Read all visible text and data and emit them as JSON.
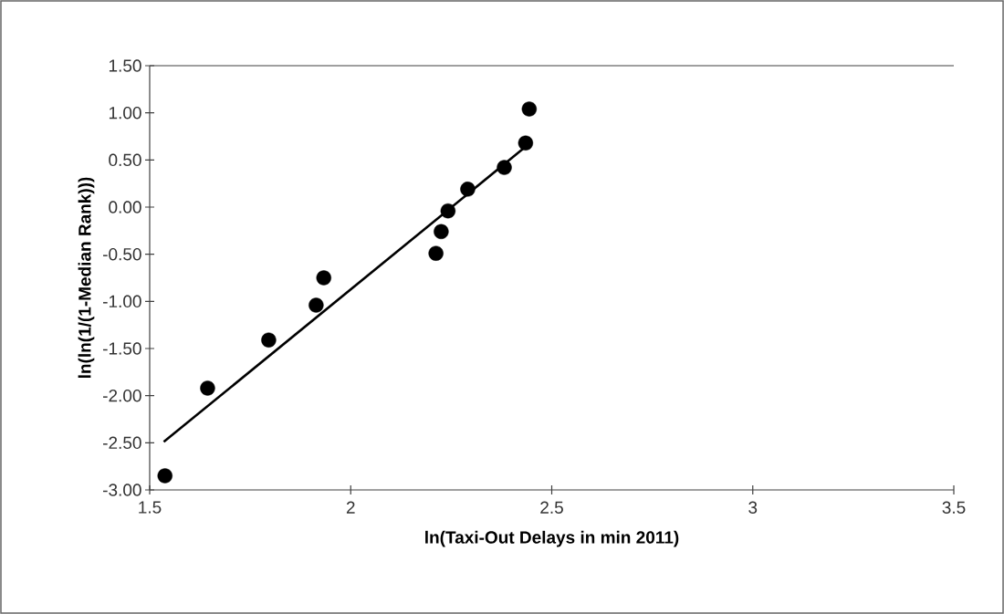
{
  "chart_data": {
    "type": "scatter",
    "xlabel": "ln(Taxi-Out Delays in min 2011)",
    "ylabel": "ln(ln(1/(1-Median Rank)))",
    "xlim": [
      1.5,
      3.5
    ],
    "ylim": [
      -3.0,
      1.5
    ],
    "xticks": [
      1.5,
      2,
      2.5,
      3,
      3.5
    ],
    "yticks": [
      {
        "value": 1.5,
        "label": "1.50"
      },
      {
        "value": 1.0,
        "label": "1.00"
      },
      {
        "value": 0.5,
        "label": "0.50"
      },
      {
        "value": 0.0,
        "label": "0.00"
      },
      {
        "value": -0.5,
        "label": "-0.50"
      },
      {
        "value": -1.0,
        "label": "-1.00"
      },
      {
        "value": -1.5,
        "label": "-1.50"
      },
      {
        "value": -2.0,
        "label": "-2.00"
      },
      {
        "value": -2.5,
        "label": "-2.50"
      },
      {
        "value": -3.0,
        "label": "-3.00"
      }
    ],
    "series": [
      {
        "color": "#000000",
        "marker": "circle",
        "x": [
          1.538,
          1.644,
          1.796,
          1.914,
          1.933,
          2.212,
          2.225,
          2.242,
          2.291,
          2.382,
          2.435,
          2.444
        ],
        "values": [
          -2.85,
          -1.92,
          -1.41,
          -1.04,
          -0.75,
          -0.49,
          -0.26,
          -0.04,
          0.19,
          0.42,
          0.68,
          1.04
        ]
      },
      {
        "type": "line",
        "color": "#000000",
        "marker": "none",
        "line_style": "solid",
        "x": [
          1.535,
          2.435
        ],
        "values": [
          -2.49,
          0.64
        ]
      }
    ]
  }
}
